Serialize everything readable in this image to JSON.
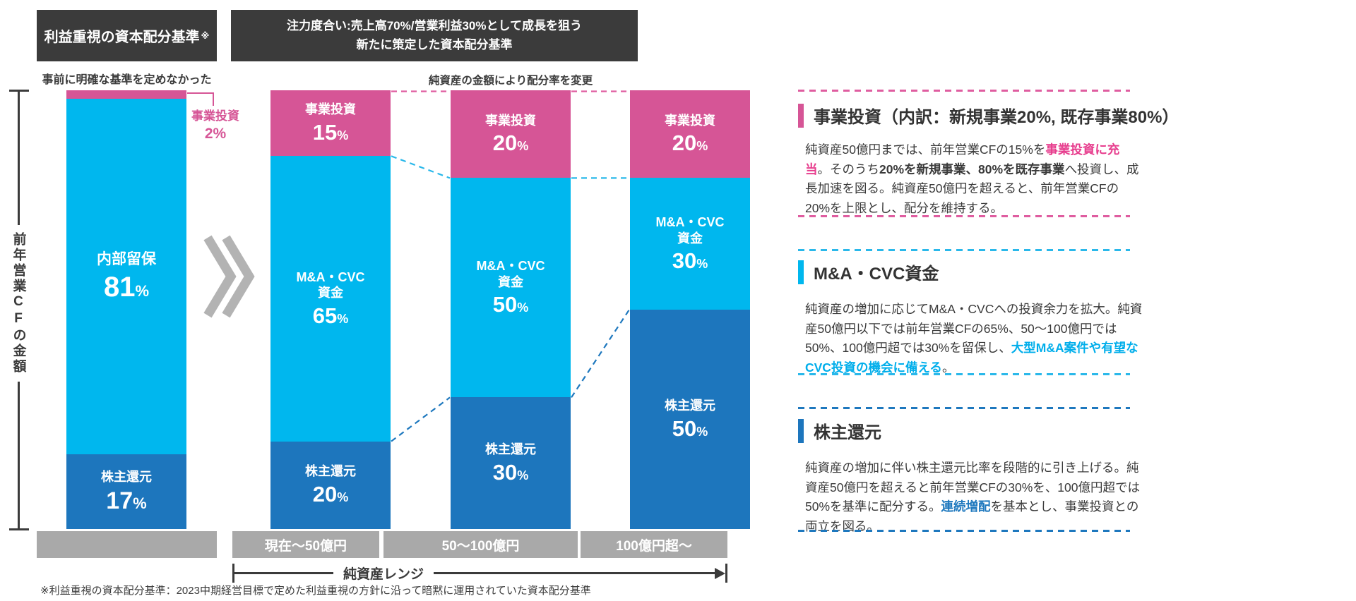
{
  "old_chart": {
    "header": "利益重視の資本配分基準",
    "header_sup": "※",
    "subtitle": "事前に明確な基準を定めなかった",
    "y_axis_label": "前年営業CFの金額",
    "callout": {
      "label": "事業投資",
      "value": "2%"
    }
  },
  "new_chart": {
    "header_line1": "注力度合い:売上高70%/営業利益30%として成長を狙う",
    "header_line2": "新たに策定した資本配分基準",
    "subtitle": "純資産の金額により配分率を変更",
    "x_axis_label": "純資産レンジ"
  },
  "footnote": "※利益重視の資本配分基準：2023中期経営目標で定めた利益重視の方針に沿って暗黙に運用されていた資本配分基準",
  "colors": {
    "invest": "#d65596",
    "ma": "#00b7ee",
    "shareholder": "#1d76bd",
    "header_bg": "#3b3b3b",
    "gray": "#a9a9a9",
    "chevron": "#b3b3b3",
    "dash": {
      "invest": "#df5da0",
      "ma": "#2ab8ea",
      "shareholder": "#1e78be"
    },
    "text": {
      "invest": "#e73e8e",
      "ma": "#00aeeb",
      "shareholder": "#1e78be"
    }
  },
  "chart_data": {
    "type": "bar",
    "subtype": "100%-stacked-columns",
    "unit": "%",
    "ylim": [
      0,
      100
    ],
    "y_axis_label": "前年営業CFの金額",
    "x_axis_label": "純資産レンジ",
    "old_title": "利益重視の資本配分基準※",
    "new_title": "注力度合い:売上高70%/営業利益30%として成長を狙う 新たに策定した資本配分基準",
    "segment_keys": [
      "invest",
      "ma",
      "shareholder"
    ],
    "bars": [
      {
        "category": "",
        "segments": [
          {
            "name": "事業投資",
            "value": 2,
            "label_shown": false
          },
          {
            "name": "内部留保",
            "value": 81,
            "label_shown": true
          },
          {
            "name": "株主還元",
            "value": 17,
            "label_shown": true
          }
        ]
      },
      {
        "category": "現在〜50億円",
        "segments": [
          {
            "name": "事業投資",
            "value": 15,
            "label_shown": true
          },
          {
            "name": "M&A・CVC資金",
            "display": "M&A・CVC\n資金",
            "value": 65,
            "label_shown": true
          },
          {
            "name": "株主還元",
            "value": 20,
            "label_shown": true
          }
        ]
      },
      {
        "category": "50〜100億円",
        "segments": [
          {
            "name": "事業投資",
            "value": 20,
            "label_shown": true
          },
          {
            "name": "M&A・CVC資金",
            "display": "M&A・CVC\n資金",
            "value": 50,
            "label_shown": true
          },
          {
            "name": "株主還元",
            "value": 30,
            "label_shown": true
          }
        ]
      },
      {
        "category": "100億円超〜",
        "segments": [
          {
            "name": "事業投資",
            "value": 20,
            "label_shown": true
          },
          {
            "name": "M&A・CVC資金",
            "display": "M&A・CVC\n資金",
            "value": 30,
            "label_shown": true
          },
          {
            "name": "株主還元",
            "value": 50,
            "label_shown": true
          }
        ]
      }
    ],
    "connectors": [
      {
        "from_bar": 1,
        "to_bar": 2,
        "boundary": 0,
        "key": "invest"
      },
      {
        "from_bar": 1,
        "to_bar": 2,
        "boundary": 1,
        "key": "ma"
      },
      {
        "from_bar": 1,
        "to_bar": 2,
        "boundary": 2,
        "key": "shareholder"
      },
      {
        "from_bar": 2,
        "to_bar": 3,
        "boundary": 0,
        "key": "invest"
      },
      {
        "from_bar": 2,
        "to_bar": 3,
        "boundary": 1,
        "key": "ma"
      },
      {
        "from_bar": 2,
        "to_bar": 3,
        "boundary": 2,
        "key": "shareholder"
      }
    ]
  },
  "panels": [
    {
      "key": "invest",
      "title": "事業投資（内訳：新規事業20%, 既存事業80%）",
      "body": [
        {
          "t": "純資産50億円までは、前年営業CFの15%を",
          "s": "n"
        },
        {
          "t": "事業投資に充当",
          "s": "invest"
        },
        {
          "t": "。そのうち",
          "s": "n"
        },
        {
          "t": "20%を新規事業、80%を既存事業",
          "s": "b"
        },
        {
          "t": "へ投資し、成長加速を図る。純資産50億円を超えると、前年営業CFの20%を上限とし、配分を維持する。",
          "s": "n"
        }
      ]
    },
    {
      "key": "ma",
      "title": "M&A・CVC資金",
      "body": [
        {
          "t": "純資産の増加に応じてM&A・CVCへの投資余力を拡大。純資産50億円以下では前年営業CFの65%、50〜100億円では50%、100億円超では30%を留保し、",
          "s": "n"
        },
        {
          "t": "大型M&A案件や有望なCVC投資の機会に備える",
          "s": "ma"
        },
        {
          "t": "。",
          "s": "n"
        }
      ]
    },
    {
      "key": "shareholder",
      "title": "株主還元",
      "body": [
        {
          "t": "純資産の増加に伴い株主還元比率を段階的に引き上げる。純資産50億円を超えると前年営業CFの30%を、100億円超では50%を基準に配分する。",
          "s": "n"
        },
        {
          "t": "連続増配",
          "s": "shareholder"
        },
        {
          "t": "を基本とし、事業投資との両立を図る。",
          "s": "n"
        }
      ]
    }
  ]
}
